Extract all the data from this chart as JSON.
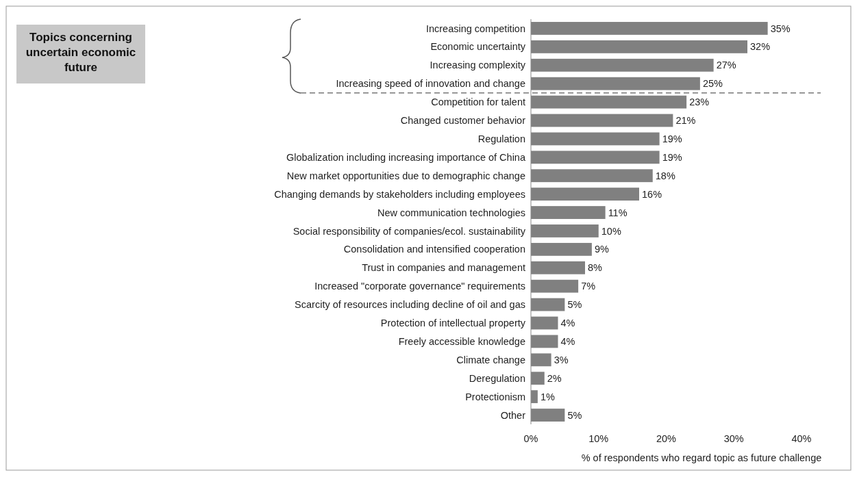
{
  "chart_data": {
    "type": "bar",
    "orientation": "horizontal",
    "categories": [
      "Increasing competition",
      "Economic uncertainty",
      "Increasing complexity",
      "Increasing speed of innovation and change",
      "Competition for talent",
      "Changed customer behavior",
      "Regulation",
      "Globalization including increasing importance of China",
      "New market opportunities due to demographic change",
      "Changing demands by stakeholders including employees",
      "New communication technologies",
      "Social responsibility of companies/ecol. sustainability",
      "Consolidation and intensified cooperation",
      "Trust in companies and management",
      "Increased \"corporate governance\" requirements",
      "Scarcity of resources including decline of oil and gas",
      "Protection of intellectual property",
      "Freely accessible knowledge",
      "Climate change",
      "Deregulation",
      "Protectionism",
      "Other"
    ],
    "values": [
      35,
      32,
      27,
      25,
      23,
      21,
      19,
      19,
      18,
      16,
      11,
      10,
      9,
      8,
      7,
      5,
      4,
      4,
      3,
      2,
      1,
      5
    ],
    "color": "#808080",
    "value_labels": [
      "35%",
      "32%",
      "27%",
      "25%",
      "23%",
      "21%",
      "19%",
      "19%",
      "18%",
      "16%",
      "11%",
      "10%",
      "9%",
      "8%",
      "7%",
      "5%",
      "4%",
      "4%",
      "3%",
      "2%",
      "1%",
      "5%"
    ],
    "xlim": [
      0,
      40
    ],
    "xticks": [
      {
        "value": 0,
        "label": "0%"
      },
      {
        "value": 10,
        "label": "10%"
      },
      {
        "value": 20,
        "label": "20%"
      },
      {
        "value": 30,
        "label": "30%"
      },
      {
        "value": 40,
        "label": "40%"
      }
    ],
    "xlabel": "% of respondents who regard topic as future challenge",
    "annotations": [
      "Topics concerning uncertain economic future"
    ],
    "grid": false
  }
}
